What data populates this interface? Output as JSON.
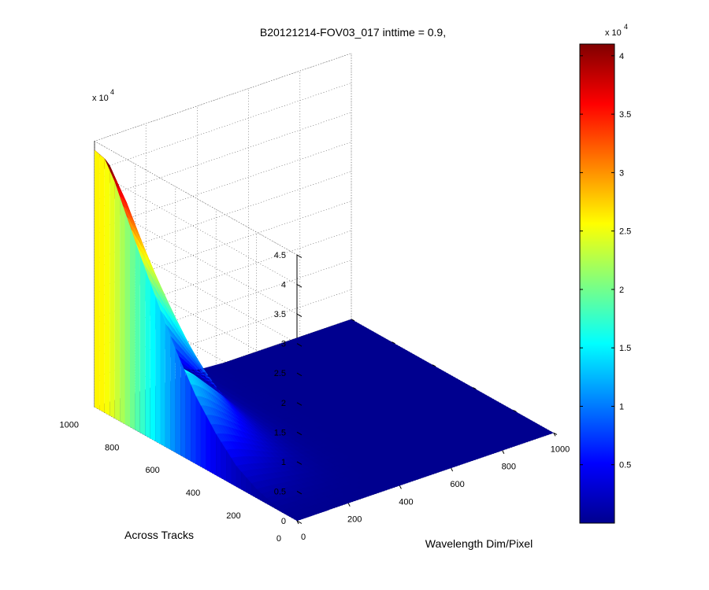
{
  "figure": {
    "title": "B20121214-FOV03_017 inttime = 0.9,"
  },
  "chart_data": {
    "type": "surface",
    "title": "B20121214-FOV03_017 inttime = 0.9,",
    "xlabel": "Wavelength Dim/Pixel",
    "ylabel": "Across Tracks",
    "zlabel": "",
    "xlim": [
      0,
      1000
    ],
    "ylim": [
      0,
      1000
    ],
    "zlim": [
      0,
      45000
    ],
    "x_ticks": [
      "0",
      "200",
      "400",
      "600",
      "800",
      "1000"
    ],
    "x_tick_values": [
      0,
      200,
      400,
      600,
      800,
      1000
    ],
    "y_ticks": [
      "0",
      "200",
      "400",
      "600",
      "800",
      "1000"
    ],
    "y_tick_values": [
      0,
      200,
      400,
      600,
      800,
      1000
    ],
    "z_ticks": [
      "0",
      "0.5",
      "1",
      "1.5",
      "2",
      "2.5",
      "3",
      "3.5",
      "4",
      "4.5"
    ],
    "z_tick_values": [
      0,
      5000,
      10000,
      15000,
      20000,
      25000,
      30000,
      35000,
      40000,
      45000
    ],
    "z_exponent": {
      "base": "x 10",
      "power": "4"
    },
    "grid": true,
    "colormap": "jet",
    "peak_z": 43500,
    "profile_across_track": {
      "wavelength_pixel": 0,
      "across_track": [
        0,
        100,
        200,
        300,
        400,
        500,
        600,
        700,
        800,
        850,
        900,
        950,
        1000
      ],
      "z": [
        0,
        400,
        1500,
        3500,
        7000,
        11500,
        17500,
        24500,
        32000,
        36000,
        40000,
        43000,
        43500
      ]
    },
    "profile_wavelength": {
      "across_track": 1000,
      "wavelength_pixel": [
        0,
        20,
        50,
        100,
        150,
        200,
        250,
        300,
        350,
        400,
        500,
        1000
      ],
      "z": [
        43500,
        42000,
        38500,
        31000,
        22500,
        14500,
        8000,
        3500,
        1200,
        300,
        0,
        0
      ]
    },
    "colorbar": {
      "ticks": [
        "0.5",
        "1",
        "1.5",
        "2",
        "2.5",
        "3",
        "3.5",
        "4"
      ],
      "tick_values": [
        5000,
        10000,
        15000,
        20000,
        25000,
        30000,
        35000,
        40000
      ],
      "range": [
        0,
        41000
      ],
      "exponent": {
        "base": "x 10",
        "power": "4"
      },
      "colors": [
        "#00008f",
        "#0000ff",
        "#00ffff",
        "#ffff00",
        "#ff0000",
        "#800000"
      ]
    }
  }
}
